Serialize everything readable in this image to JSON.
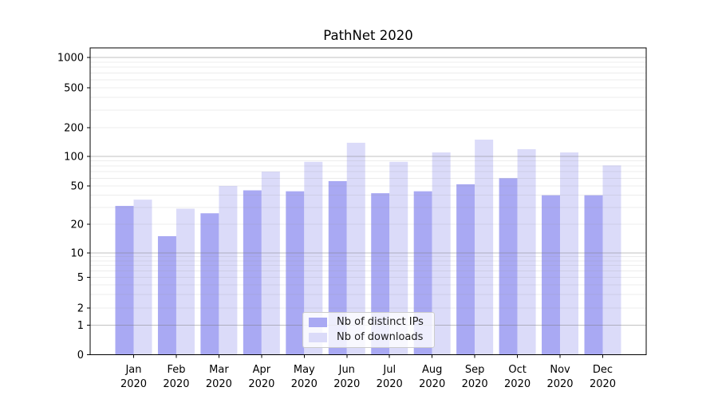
{
  "chart_data": {
    "type": "bar",
    "title": "PathNet 2020",
    "categories": [
      "Jan",
      "Feb",
      "Mar",
      "Apr",
      "May",
      "Jun",
      "Jul",
      "Aug",
      "Sep",
      "Oct",
      "Nov",
      "Dec"
    ],
    "category_year": "2020",
    "series": [
      {
        "name": "Nb of distinct IPs",
        "color": "#a9a9f3",
        "values": [
          31,
          15,
          26,
          45,
          44,
          56,
          42,
          44,
          52,
          60,
          40,
          40
        ]
      },
      {
        "name": "Nb of downloads",
        "color": "#dbdbf9",
        "values": [
          36,
          29,
          50,
          70,
          88,
          139,
          88,
          110,
          150,
          119,
          110,
          81
        ]
      }
    ],
    "xlabel": "",
    "ylabel": "",
    "yscale": "symlog",
    "y_ticks": [
      0,
      1,
      2,
      5,
      10,
      20,
      50,
      100,
      200,
      500,
      1000
    ],
    "ylim": [
      0,
      1250
    ],
    "grid": true,
    "grid_over_bars": true,
    "legend_position": "lower center",
    "colors": {
      "major_grid": "rgba(120,120,120,0.45)",
      "minor_grid": "rgba(150,150,150,0.18)",
      "axis": "#000000",
      "tick_label": "#000000"
    }
  }
}
